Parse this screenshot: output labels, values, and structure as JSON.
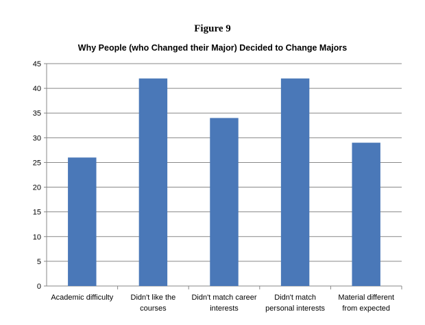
{
  "figure_label": "Figure 9",
  "chart_data": {
    "type": "bar",
    "title": "Why People (who Changed their Major) Decided to Change Majors",
    "categories": [
      [
        "Academic difficulty"
      ],
      [
        "Didn't like the",
        "courses"
      ],
      [
        "Didn't match career",
        "interests"
      ],
      [
        "Didn't match",
        "personal interests"
      ],
      [
        "Material different",
        "from expected"
      ]
    ],
    "values": [
      26,
      42,
      34,
      42,
      29
    ],
    "ylim": [
      0,
      45
    ],
    "yticks": [
      "0",
      "5",
      "10",
      "15",
      "20",
      "25",
      "30",
      "35",
      "40",
      "45"
    ],
    "grid": true,
    "bar_color": "#4a78b8"
  }
}
